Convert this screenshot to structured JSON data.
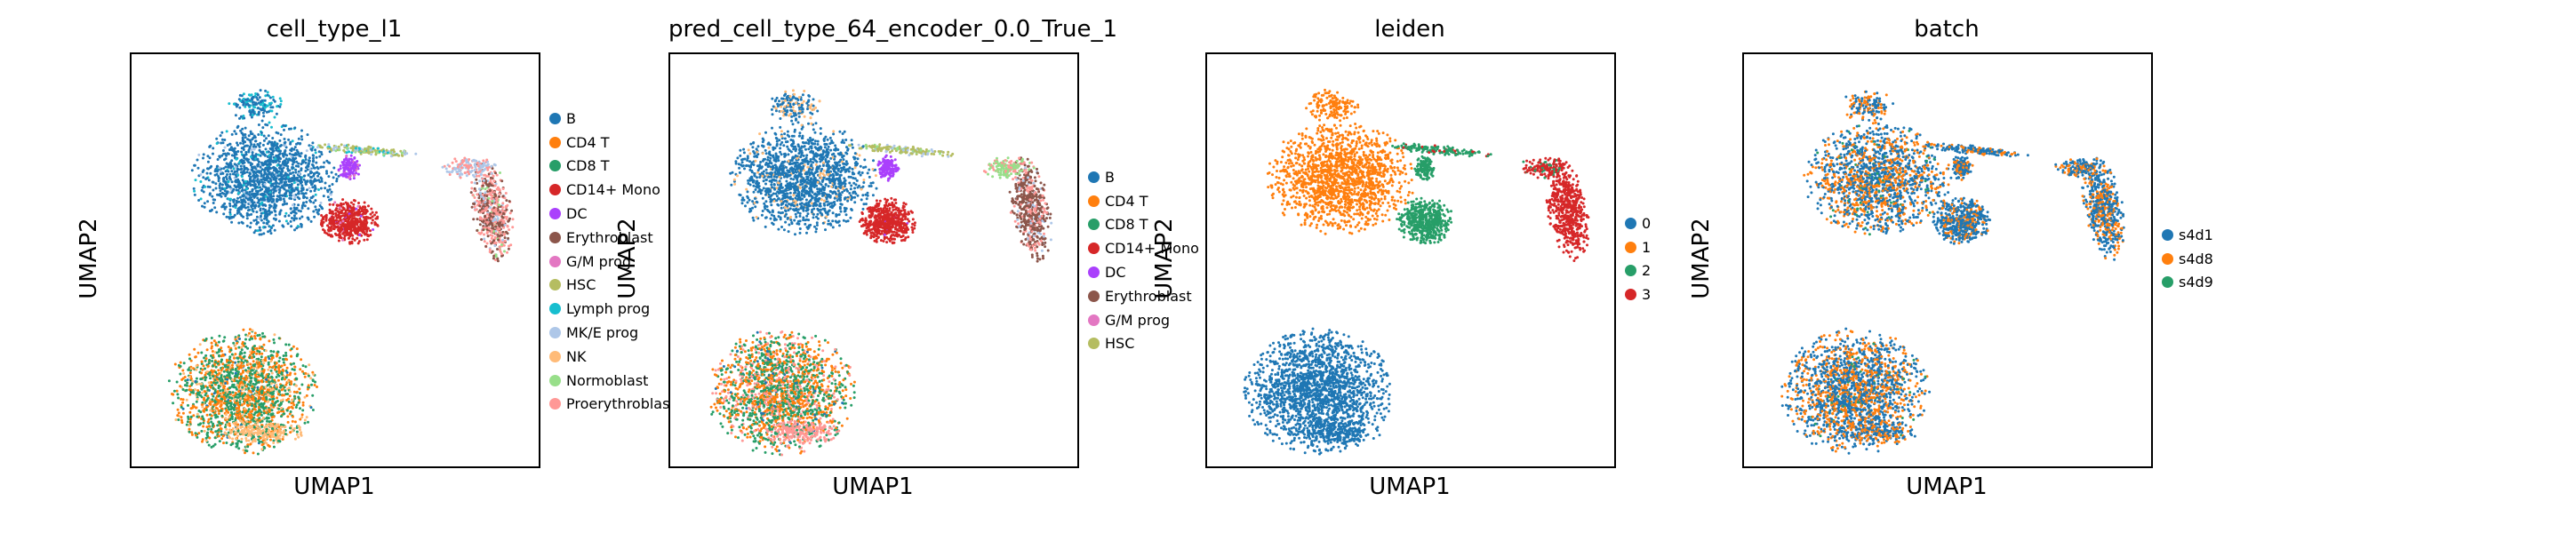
{
  "palette": {
    "c0": "#1f77b4",
    "c1": "#ff7f0e",
    "c2": "#279e68",
    "c3": "#d62728",
    "c4": "#aa40fc",
    "c5": "#8c564b",
    "c6": "#e377c2",
    "c7": "#b5bd61",
    "c8": "#17becf",
    "c9": "#aec7e8",
    "c10": "#ffbb78",
    "c11": "#98df8a",
    "c12": "#ff9896"
  },
  "chart_data": [
    {
      "type": "scatter",
      "title": "cell_type_l1",
      "xlabel": "UMAP1",
      "ylabel": "UMAP2",
      "legend_position": "right",
      "legend": [
        {
          "label": "B",
          "color": "#1f77b4"
        },
        {
          "label": "CD4 T",
          "color": "#ff7f0e"
        },
        {
          "label": "CD8 T",
          "color": "#279e68"
        },
        {
          "label": "CD14+ Mono",
          "color": "#d62728"
        },
        {
          "label": "DC",
          "color": "#aa40fc"
        },
        {
          "label": "Erythroblast",
          "color": "#8c564b"
        },
        {
          "label": "G/M prog",
          "color": "#e377c2"
        },
        {
          "label": "HSC",
          "color": "#b5bd61"
        },
        {
          "label": "Lymph prog",
          "color": "#17becf"
        },
        {
          "label": "MK/E prog",
          "color": "#aec7e8"
        },
        {
          "label": "NK",
          "color": "#ffbb78"
        },
        {
          "label": "Normoblast",
          "color": "#98df8a"
        },
        {
          "label": "Proerythroblast",
          "color": "#ff9896"
        }
      ]
    },
    {
      "type": "scatter",
      "title": "pred_cell_type_64_encoder_0.0_True_1",
      "xlabel": "UMAP1",
      "ylabel": "UMAP2",
      "legend_position": "right",
      "legend": [
        {
          "label": "B",
          "color": "#1f77b4"
        },
        {
          "label": "CD4 T",
          "color": "#ff7f0e"
        },
        {
          "label": "CD8 T",
          "color": "#279e68"
        },
        {
          "label": "CD14+ Mono",
          "color": "#d62728"
        },
        {
          "label": "DC",
          "color": "#aa40fc"
        },
        {
          "label": "Erythroblast",
          "color": "#8c564b"
        },
        {
          "label": "G/M prog",
          "color": "#e377c2"
        },
        {
          "label": "HSC",
          "color": "#b5bd61"
        }
      ]
    },
    {
      "type": "scatter",
      "title": "leiden",
      "xlabel": "UMAP1",
      "ylabel": "UMAP2",
      "legend_position": "right",
      "legend": [
        {
          "label": "0",
          "color": "#1f77b4"
        },
        {
          "label": "1",
          "color": "#ff7f0e"
        },
        {
          "label": "2",
          "color": "#279e68"
        },
        {
          "label": "3",
          "color": "#d62728"
        }
      ]
    },
    {
      "type": "scatter",
      "title": "batch",
      "xlabel": "UMAP1",
      "ylabel": "UMAP2",
      "legend_position": "right",
      "legend": [
        {
          "label": "s4d1",
          "color": "#1f77b4"
        },
        {
          "label": "s4d8",
          "color": "#ff7f0e"
        },
        {
          "label": "s4d9",
          "color": "#279e68"
        }
      ]
    }
  ]
}
